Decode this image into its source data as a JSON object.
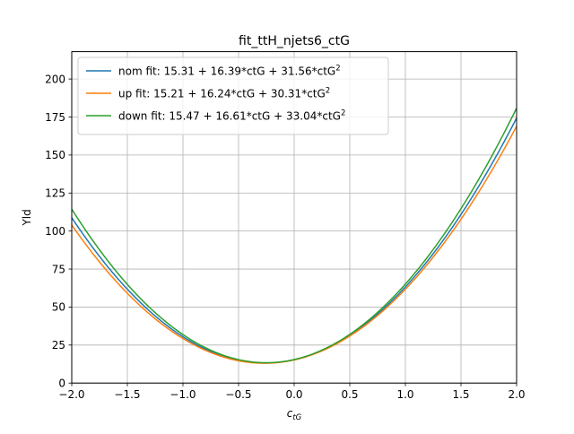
{
  "chart_data": {
    "type": "line",
    "title": "fit_ttH_njets6_ctG",
    "xlabel": "c",
    "xlabel_sub": "tG",
    "ylabel": "Yld",
    "xlim": [
      -2.0,
      2.0
    ],
    "ylim": [
      0,
      218
    ],
    "xticks": [
      -2.0,
      -1.5,
      -1.0,
      -0.5,
      0.0,
      0.5,
      1.0,
      1.5,
      2.0
    ],
    "xtick_labels": [
      "−2.0",
      "−1.5",
      "−1.0",
      "−0.5",
      "0.0",
      "0.5",
      "1.0",
      "1.5",
      "2.0"
    ],
    "yticks": [
      0,
      25,
      50,
      75,
      100,
      125,
      150,
      175,
      200
    ],
    "ytick_labels": [
      "0",
      "25",
      "50",
      "75",
      "100",
      "125",
      "150",
      "175",
      "200"
    ],
    "grid": true,
    "legend_position": "top-left",
    "series": [
      {
        "name": "nom fit: 15.31 + 16.39*ctG + 31.56*ctG",
        "superscript": "2",
        "color": "#1f77b4",
        "coefficients": [
          15.31,
          16.39,
          31.56
        ]
      },
      {
        "name": "up fit: 15.21 + 16.24*ctG + 30.31*ctG",
        "superscript": "2",
        "color": "#ff7f0e",
        "coefficients": [
          15.21,
          16.24,
          30.31
        ]
      },
      {
        "name": "down fit: 15.47 + 16.61*ctG + 33.04*ctG",
        "superscript": "2",
        "color": "#2ca02c",
        "coefficients": [
          15.47,
          16.61,
          33.04
        ]
      }
    ]
  }
}
